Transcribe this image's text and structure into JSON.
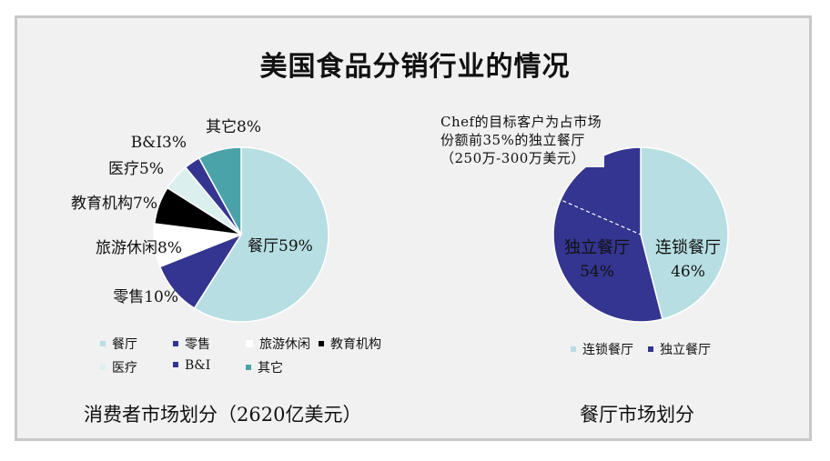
{
  "title": "美国食品分销行业的情况",
  "chart_data": [
    {
      "type": "pie",
      "caption": "消费者市场划分（2620亿美元）",
      "slices": [
        {
          "label": "餐厅",
          "legend": "餐厅",
          "value": 59,
          "data_label": "餐厅59%",
          "color": "#b7dfe3"
        },
        {
          "label": "零售",
          "legend": "零售",
          "value": 10,
          "data_label": "零售10%",
          "color": "#343590"
        },
        {
          "label": "旅游休闲",
          "legend": "旅游休闲",
          "value": 8,
          "data_label": "旅游休闲8%",
          "color": "#ffffff"
        },
        {
          "label": "教育机构",
          "legend": "教育机构",
          "value": 7,
          "data_label": "教育机构7%",
          "color": "#000000"
        },
        {
          "label": "医疗",
          "legend": "医疗",
          "value": 5,
          "data_label": "医疗5%",
          "color": "#dcefef"
        },
        {
          "label": "B&I",
          "legend": "B&I",
          "value": 3,
          "data_label": "B&I3%",
          "color": "#343590"
        },
        {
          "label": "其它",
          "legend": "其它",
          "value": 8,
          "data_label": "其它8%",
          "color": "#4aa3a8"
        }
      ]
    },
    {
      "type": "pie",
      "caption": "餐厅市场划分",
      "annotation": "Chef的目标客户为占市场份额前35%的独立餐厅（250万-300万美元）",
      "slices": [
        {
          "label": "连锁餐厅",
          "legend": "连锁餐厅",
          "value": 46,
          "data_label_name": "连锁餐厅",
          "data_label_value": "46%",
          "color": "#b7dfe3"
        },
        {
          "label": "独立餐厅",
          "legend": "独立餐厅",
          "value": 54,
          "data_label_name": "独立餐厅",
          "data_label_value": "54%",
          "color": "#343590"
        }
      ]
    }
  ]
}
